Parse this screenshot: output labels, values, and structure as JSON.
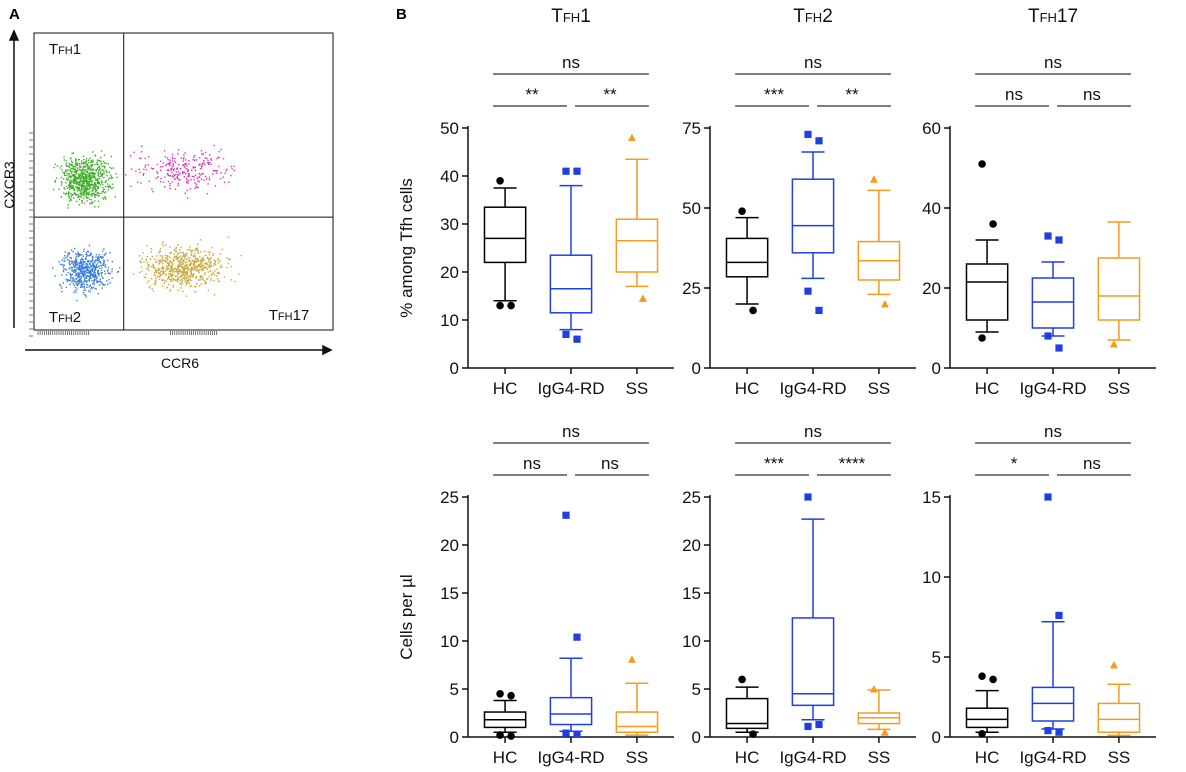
{
  "panel_labels": {
    "a": "A",
    "b": "B"
  },
  "chart_data": [
    {
      "type": "scatter",
      "id": "flow",
      "title": "",
      "xlabel": "CCR6",
      "ylabel": "CXCR3",
      "quadrant_labels": {
        "tl": "FH1",
        "bl": "FH2",
        "br": "FH17"
      },
      "quadrant_prefix": "T",
      "quadrant_colors": {
        "tl": "#3fae2a",
        "tr": "#d63ab8",
        "bl": "#3a7fd6",
        "br": "#c9a83c"
      },
      "quadrant_counts": {
        "tl": 700,
        "tr": 260,
        "bl": 560,
        "br": 640
      },
      "gate": {
        "x_split": 0.3,
        "y_split": 0.38
      },
      "x_range": [
        0,
        1
      ],
      "y_range": [
        0,
        1
      ]
    },
    {
      "type": "boxplot",
      "id": "r1c1",
      "title": "FH1",
      "title_prefix": "T",
      "ylabel": "% among Tfh cells",
      "ylim": [
        0,
        50
      ],
      "yticks": [
        0,
        10,
        20,
        30,
        40,
        50
      ],
      "categories": [
        "HC",
        "IgG4-RD",
        "SS"
      ],
      "series": [
        {
          "name": "HC",
          "color": "#000000",
          "marker": "circle",
          "whisker_low": 14,
          "q1": 22,
          "median": 27,
          "q3": 33.5,
          "whisker_high": 37.5,
          "outliers": [
            39,
            13,
            13
          ]
        },
        {
          "name": "IgG4-RD",
          "color": "#1f3fe0",
          "marker": "square",
          "whisker_low": 8,
          "q1": 11.5,
          "median": 16.5,
          "q3": 23.5,
          "whisker_high": 38,
          "outliers": [
            41,
            41,
            7,
            6
          ]
        },
        {
          "name": "SS",
          "color": "#f39c1e",
          "marker": "triangle",
          "whisker_low": 17,
          "q1": 20,
          "median": 26.5,
          "q3": 31,
          "whisker_high": 43.5,
          "outliers": [
            48,
            14.5
          ]
        }
      ],
      "significance": {
        "top": "ns",
        "left": "**",
        "right": "**"
      }
    },
    {
      "type": "boxplot",
      "id": "r1c2",
      "title": "FH2",
      "title_prefix": "T",
      "ylabel": "",
      "ylim": [
        0,
        75
      ],
      "yticks": [
        0,
        25,
        50,
        75
      ],
      "categories": [
        "HC",
        "IgG4-RD",
        "SS"
      ],
      "series": [
        {
          "name": "HC",
          "color": "#000000",
          "marker": "circle",
          "whisker_low": 20,
          "q1": 28.5,
          "median": 33,
          "q3": 40.5,
          "whisker_high": 47,
          "outliers": [
            49,
            18
          ]
        },
        {
          "name": "IgG4-RD",
          "color": "#1f3fe0",
          "marker": "square",
          "whisker_low": 28,
          "q1": 36,
          "median": 44.5,
          "q3": 59,
          "whisker_high": 67.5,
          "outliers": [
            73,
            71,
            24,
            18
          ]
        },
        {
          "name": "SS",
          "color": "#f39c1e",
          "marker": "triangle",
          "whisker_low": 23,
          "q1": 27.5,
          "median": 33.5,
          "q3": 39.5,
          "whisker_high": 55.5,
          "outliers": [
            59,
            20
          ]
        }
      ],
      "significance": {
        "top": "ns",
        "left": "***",
        "right": "**"
      }
    },
    {
      "type": "boxplot",
      "id": "r1c3",
      "title": "FH17",
      "title_prefix": "T",
      "ylabel": "",
      "ylim": [
        0,
        60
      ],
      "yticks": [
        0,
        20,
        40,
        60
      ],
      "categories": [
        "HC",
        "IgG4-RD",
        "SS"
      ],
      "series": [
        {
          "name": "HC",
          "color": "#000000",
          "marker": "circle",
          "whisker_low": 9,
          "q1": 12,
          "median": 21.5,
          "q3": 26,
          "whisker_high": 32,
          "outliers": [
            51,
            36,
            7.5
          ]
        },
        {
          "name": "IgG4-RD",
          "color": "#1f3fe0",
          "marker": "square",
          "whisker_low": 8,
          "q1": 10,
          "median": 16.5,
          "q3": 22.5,
          "whisker_high": 26.5,
          "outliers": [
            33,
            32,
            8,
            5
          ]
        },
        {
          "name": "SS",
          "color": "#f39c1e",
          "marker": "triangle",
          "whisker_low": 7,
          "q1": 12,
          "median": 18,
          "q3": 27.5,
          "whisker_high": 36.5,
          "outliers": [
            6
          ]
        }
      ],
      "significance": {
        "top": "ns",
        "left": "ns",
        "right": "ns"
      }
    },
    {
      "type": "boxplot",
      "id": "r2c1",
      "title": "",
      "title_prefix": "",
      "ylabel": "Cells per µl",
      "ylim": [
        0,
        25
      ],
      "yticks": [
        0,
        5,
        10,
        15,
        20,
        25
      ],
      "categories": [
        "HC",
        "IgG4-RD",
        "SS"
      ],
      "series": [
        {
          "name": "HC",
          "color": "#000000",
          "marker": "circle",
          "whisker_low": 0.5,
          "q1": 1,
          "median": 1.8,
          "q3": 2.6,
          "whisker_high": 3.8,
          "outliers": [
            4.5,
            4.3,
            0.2,
            0.1
          ]
        },
        {
          "name": "IgG4-RD",
          "color": "#1f3fe0",
          "marker": "square",
          "whisker_low": 0.6,
          "q1": 1.3,
          "median": 2.4,
          "q3": 4.1,
          "whisker_high": 8.2,
          "outliers": [
            23.1,
            10.4,
            0.4,
            0.3
          ]
        },
        {
          "name": "SS",
          "color": "#f39c1e",
          "marker": "triangle",
          "whisker_low": 0.2,
          "q1": 0.5,
          "median": 1.1,
          "q3": 2.6,
          "whisker_high": 5.6,
          "outliers": [
            8.1
          ]
        }
      ],
      "significance": {
        "top": "ns",
        "left": "ns",
        "right": "ns"
      }
    },
    {
      "type": "boxplot",
      "id": "r2c2",
      "title": "",
      "title_prefix": "",
      "ylabel": "",
      "ylim": [
        0,
        25
      ],
      "yticks": [
        0,
        5,
        10,
        15,
        20,
        25
      ],
      "categories": [
        "HC",
        "IgG4-RD",
        "SS"
      ],
      "series": [
        {
          "name": "HC",
          "color": "#000000",
          "marker": "circle",
          "whisker_low": 0.5,
          "q1": 0.9,
          "median": 1.4,
          "q3": 4,
          "whisker_high": 5.2,
          "outliers": [
            6,
            0.3
          ]
        },
        {
          "name": "IgG4-RD",
          "color": "#1f3fe0",
          "marker": "square",
          "whisker_low": 1.8,
          "q1": 3.3,
          "median": 4.5,
          "q3": 12.4,
          "whisker_high": 22.7,
          "outliers": [
            25,
            1.3,
            1.1
          ]
        },
        {
          "name": "SS",
          "color": "#f39c1e",
          "marker": "triangle",
          "whisker_low": 0.8,
          "q1": 1.4,
          "median": 2,
          "q3": 2.5,
          "whisker_high": 4.9,
          "outliers": [
            5,
            0.5
          ]
        }
      ],
      "significance": {
        "top": "ns",
        "left": "***",
        "right": "****"
      }
    },
    {
      "type": "boxplot",
      "id": "r2c3",
      "title": "",
      "title_prefix": "",
      "ylabel": "",
      "ylim": [
        0,
        15
      ],
      "yticks": [
        0,
        5,
        10,
        15
      ],
      "categories": [
        "HC",
        "IgG4-RD",
        "SS"
      ],
      "series": [
        {
          "name": "HC",
          "color": "#000000",
          "marker": "circle",
          "whisker_low": 0.3,
          "q1": 0.6,
          "median": 1.1,
          "q3": 1.8,
          "whisker_high": 2.9,
          "outliers": [
            3.8,
            3.6,
            0.2
          ]
        },
        {
          "name": "IgG4-RD",
          "color": "#1f3fe0",
          "marker": "square",
          "whisker_low": 0.5,
          "q1": 1,
          "median": 2.1,
          "q3": 3.1,
          "whisker_high": 7.2,
          "outliers": [
            15,
            7.6,
            0.4,
            0.3
          ]
        },
        {
          "name": "SS",
          "color": "#f39c1e",
          "marker": "triangle",
          "whisker_low": 0.1,
          "q1": 0.3,
          "median": 1.1,
          "q3": 2.1,
          "whisker_high": 3.3,
          "outliers": [
            4.5
          ]
        }
      ],
      "significance": {
        "top": "ns",
        "left": "*",
        "right": "ns"
      }
    }
  ]
}
